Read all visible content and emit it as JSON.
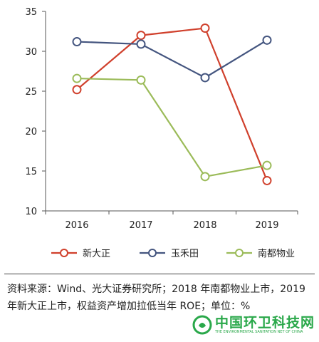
{
  "chart_data": {
    "type": "line",
    "x": [
      "2016",
      "2017",
      "2018",
      "2019"
    ],
    "ylim": [
      10,
      35
    ],
    "yticks": [
      10,
      15,
      20,
      25,
      30,
      35
    ],
    "title": "",
    "xlabel": "",
    "ylabel": "",
    "grid": false,
    "legend_position": "bottom",
    "series": [
      {
        "name": "新大正",
        "color": "#d0402c",
        "values": [
          25.2,
          32.0,
          32.9,
          13.8
        ]
      },
      {
        "name": "玉禾田",
        "color": "#44557f",
        "values": [
          31.2,
          30.9,
          26.7,
          31.4
        ]
      },
      {
        "name": "南都物业",
        "color": "#9bbb59",
        "values": [
          26.6,
          26.4,
          14.3,
          15.7
        ]
      }
    ]
  },
  "footer": {
    "source": "资料来源：Wind、光大证券研究所；2018 年南都物业上市，2019 年新大正上市，权益资产增加拉低当年 ROE；单位：%"
  },
  "watermark": {
    "title": "中国环卫科技网",
    "subtitle": "THE ENVIRONMENTAL SANITATION NET OF CHINA"
  }
}
